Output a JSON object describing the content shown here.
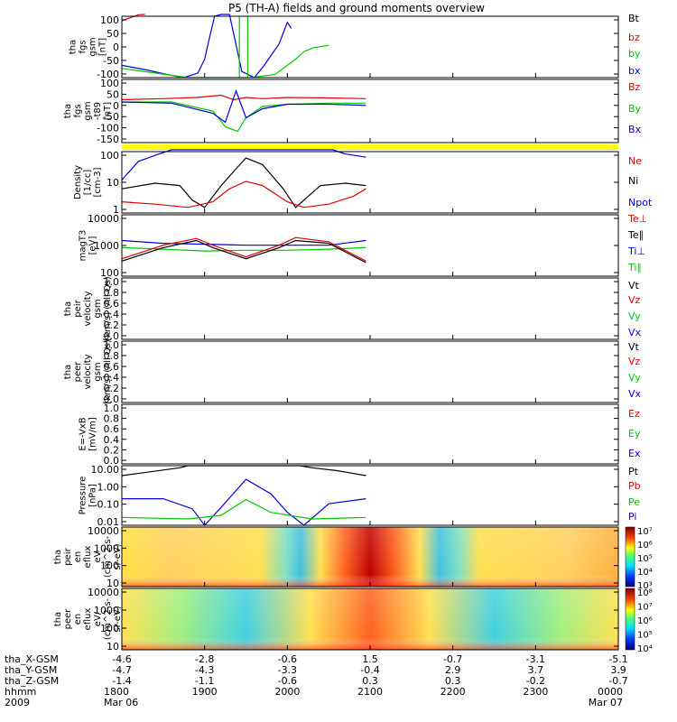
{
  "title": "P5 (TH-A) fields and ground moments overview",
  "colors": {
    "black": "#000000",
    "red": "#e00000",
    "green": "#00c800",
    "blue": "#0000e6",
    "yellow": "#ffff00"
  },
  "chart_data": [
    {
      "type": "line",
      "panel": "fgs",
      "ylabel_lines": [
        "tha",
        "fgs",
        "gsm",
        "[nT]"
      ],
      "ylim": [
        -100,
        100
      ],
      "ytick_labels": [
        "100",
        "50",
        "0",
        "-50",
        "-100"
      ],
      "legend": [
        {
          "label": "Bt",
          "color": "#000000"
        },
        {
          "label": "bz",
          "color": "#e00000"
        },
        {
          "label": "by",
          "color": "#00c800"
        },
        {
          "label": "bx",
          "color": "#0000e6"
        }
      ],
      "series": [
        {
          "name": "bx",
          "color": "#0000e6",
          "x": [
            0,
            0.3,
            0.55,
            0.75,
            0.92,
            1.0,
            1.05,
            1.12,
            1.2,
            1.3,
            1.45,
            1.6,
            1.72,
            1.9,
            2.0,
            2.05
          ],
          "y": [
            -60,
            -75,
            -90,
            -100,
            -85,
            -40,
            20,
            100,
            160,
            120,
            -80,
            -100,
            -60,
            10,
            80,
            60
          ]
        },
        {
          "name": "by",
          "color": "#00c800",
          "x": [
            0,
            0.4,
            0.8,
            1.05,
            1.3,
            1.55,
            1.85,
            2.1,
            2.2,
            2.32,
            2.5
          ],
          "y": [
            -70,
            -85,
            -100,
            -100,
            -100,
            -100,
            -90,
            -40,
            -15,
            -2,
            5
          ]
        },
        {
          "name": "bz",
          "color": "#e00000",
          "x": [
            0,
            0.1,
            0.2,
            0.28
          ],
          "y": [
            85,
            95,
            105,
            115
          ]
        }
      ],
      "clip_vertical_green": [
        [
          1.42,
          1.52
        ]
      ]
    },
    {
      "type": "line",
      "panel": "fgs_dsl",
      "ylabel_lines": [
        "tha",
        "fgs",
        "gsm",
        "-t89",
        "[nT]"
      ],
      "ylim": [
        -170,
        110
      ],
      "ytick_labels": [
        "100",
        "50",
        "0",
        "-50",
        "-100",
        "-150"
      ],
      "legend": [
        {
          "label": "Bz",
          "color": "#e00000"
        },
        {
          "label": "By",
          "color": "#00c800"
        },
        {
          "label": "Bx",
          "color": "#0000e6"
        }
      ],
      "series": [
        {
          "name": "Bz",
          "color": "#e00000",
          "x": [
            0,
            0.5,
            0.9,
            1.2,
            1.35,
            1.5,
            1.7,
            2.0,
            2.5,
            2.95
          ],
          "y": [
            20,
            25,
            30,
            40,
            20,
            30,
            25,
            30,
            28,
            25
          ]
        },
        {
          "name": "By",
          "color": "#00c800",
          "x": [
            0,
            0.6,
            1.1,
            1.25,
            1.4,
            1.5,
            1.7,
            2.0,
            2.5,
            2.95
          ],
          "y": [
            10,
            10,
            -30,
            -100,
            -120,
            -60,
            -10,
            0,
            5,
            5
          ]
        },
        {
          "name": "Bx",
          "color": "#0000e6",
          "x": [
            0,
            0.6,
            1.1,
            1.25,
            1.38,
            1.5,
            1.7,
            2.0,
            2.5,
            2.95
          ],
          "y": [
            10,
            5,
            -40,
            -80,
            60,
            -60,
            -20,
            0,
            0,
            -5
          ]
        }
      ]
    },
    {
      "type": "line",
      "panel": "density",
      "ylabel_lines": [
        "Density",
        "[1/cc]",
        "[cm-3]"
      ],
      "yscale": "log",
      "ylim": [
        0.1,
        200
      ],
      "ytick_labels": [
        "100",
        "10",
        "1"
      ],
      "legend": [
        {
          "label": "Ne",
          "color": "#e00000"
        },
        {
          "label": "Ni",
          "color": "#000000"
        },
        {
          "label": "Npot",
          "color": "#0000e6"
        }
      ],
      "series": [
        {
          "name": "Ni",
          "color": "#000000",
          "x": [
            0,
            0.4,
            0.7,
            0.85,
            1.0,
            1.2,
            1.4,
            1.5,
            1.7,
            1.95,
            2.1,
            2.4,
            2.7,
            2.95
          ],
          "y": [
            2,
            4,
            3,
            0.5,
            0.2,
            3,
            30,
            90,
            40,
            2,
            0.2,
            3,
            4,
            3
          ]
        },
        {
          "name": "Ne",
          "color": "#e00000",
          "x": [
            0,
            0.4,
            0.8,
            1.1,
            1.3,
            1.5,
            1.7,
            2.0,
            2.2,
            2.5,
            2.8,
            2.95
          ],
          "y": [
            0.4,
            0.3,
            0.2,
            0.4,
            2,
            5,
            3,
            0.4,
            0.2,
            0.3,
            0.8,
            2
          ]
        },
        {
          "name": "Npot",
          "color": "#0000e6",
          "x": [
            0,
            0.2,
            0.45,
            0.6,
            2.55,
            2.7,
            2.95
          ],
          "y": [
            6,
            60,
            150,
            250,
            250,
            150,
            100
          ]
        }
      ]
    },
    {
      "type": "line",
      "panel": "temperature",
      "ylabel_lines": [
        "magT3",
        "[eV]"
      ],
      "yscale": "log",
      "ylim": [
        10,
        15000
      ],
      "ytick_labels": [
        "10000",
        "1000",
        "100"
      ],
      "legend": [
        {
          "label": "Te⊥",
          "color": "#e00000"
        },
        {
          "label": "Te∥",
          "color": "#000000"
        },
        {
          "label": "Ti⊥",
          "color": "#0000e6"
        },
        {
          "label": "Ti∥",
          "color": "#00c800"
        }
      ],
      "series": [
        {
          "name": "Ti⊥",
          "color": "#0000e6",
          "x": [
            0,
            0.5,
            1.0,
            1.5,
            2.0,
            2.5,
            2.95
          ],
          "y": [
            700,
            500,
            450,
            400,
            400,
            400,
            700
          ]
        },
        {
          "name": "Ti∥",
          "color": "#00c800",
          "x": [
            0,
            0.5,
            1.0,
            1.5,
            2.0,
            2.5,
            2.95
          ],
          "y": [
            300,
            250,
            200,
            220,
            220,
            250,
            300
          ]
        },
        {
          "name": "Te⊥",
          "color": "#e00000",
          "x": [
            0,
            0.5,
            0.9,
            1.1,
            1.5,
            1.9,
            2.1,
            2.5,
            2.95
          ],
          "y": [
            80,
            400,
            900,
            400,
            100,
            400,
            1000,
            600,
            60
          ]
        },
        {
          "name": "Te∥",
          "color": "#000000",
          "x": [
            0,
            0.5,
            0.9,
            1.1,
            1.5,
            1.9,
            2.1,
            2.5,
            2.95
          ],
          "y": [
            60,
            300,
            700,
            300,
            80,
            300,
            700,
            500,
            50
          ]
        }
      ]
    },
    {
      "type": "line",
      "panel": "peir_velocity",
      "ylabel_lines": [
        "tha",
        "peir",
        "velocity",
        "gsm",
        "[km/s] (All Qs)"
      ],
      "ylim": [
        0,
        1
      ],
      "ytick_labels": [
        "1.0",
        "0.8",
        "0.6",
        "0.4",
        "0.2",
        "0.0"
      ],
      "legend": [
        {
          "label": "Vt",
          "color": "#000000"
        },
        {
          "label": "Vz",
          "color": "#e00000"
        },
        {
          "label": "Vy",
          "color": "#00c800"
        },
        {
          "label": "Vx",
          "color": "#0000e6"
        }
      ],
      "series": []
    },
    {
      "type": "line",
      "panel": "peer_velocity",
      "ylabel_lines": [
        "tha",
        "peer",
        "velocity",
        "gsm",
        "[km/s] (All Qs)"
      ],
      "ylim": [
        0,
        1
      ],
      "ytick_labels": [
        "1.0",
        "0.8",
        "0.6",
        "0.4",
        "0.2",
        "0.0"
      ],
      "legend": [
        {
          "label": "Vt",
          "color": "#000000"
        },
        {
          "label": "Vz",
          "color": "#e00000"
        },
        {
          "label": "Vy",
          "color": "#00c800"
        },
        {
          "label": "Vx",
          "color": "#0000e6"
        }
      ],
      "series": []
    },
    {
      "type": "line",
      "panel": "e_field",
      "ylabel_lines": [
        "E=-VxB",
        "[mV/m]"
      ],
      "ylim": [
        0,
        1
      ],
      "ytick_labels": [
        "1.0",
        "0.8",
        "0.6",
        "0.4",
        "0.2",
        "0.0"
      ],
      "legend": [
        {
          "label": "Ez",
          "color": "#e00000"
        },
        {
          "label": "Ey",
          "color": "#00c800"
        },
        {
          "label": "Ex",
          "color": "#0000e6"
        }
      ],
      "series": []
    },
    {
      "type": "line",
      "panel": "pressure",
      "ylabel_lines": [
        "Pressure",
        "[nPa]"
      ],
      "yscale": "log",
      "ylim": [
        0.005,
        20
      ],
      "ytick_labels": [
        "10.00",
        "1.00",
        "0.10",
        "0.01"
      ],
      "legend": [
        {
          "label": "Pt",
          "color": "#000000"
        },
        {
          "label": "Pb",
          "color": "#e00000"
        },
        {
          "label": "Pe",
          "color": "#00c800"
        },
        {
          "label": "Pi",
          "color": "#0000e6"
        }
      ],
      "series": [
        {
          "name": "Pt",
          "color": "#000000",
          "x": [
            0,
            0.3,
            0.7,
            0.8,
            2.15,
            2.3,
            2.6,
            2.95
          ],
          "y": [
            5,
            8,
            15,
            20,
            20,
            15,
            10,
            5
          ]
        },
        {
          "name": "Pi",
          "color": "#0000e6",
          "x": [
            0,
            0.5,
            0.85,
            1.0,
            1.2,
            1.5,
            1.8,
            2.0,
            2.2,
            2.5,
            2.95
          ],
          "y": [
            0.2,
            0.2,
            0.05,
            0.005,
            0.06,
            3,
            0.4,
            0.03,
            0.005,
            0.1,
            0.2
          ]
        },
        {
          "name": "Pe",
          "color": "#00c800",
          "x": [
            0,
            0.8,
            1.2,
            1.5,
            1.8,
            2.3,
            2.95
          ],
          "y": [
            0.015,
            0.012,
            0.02,
            0.18,
            0.03,
            0.012,
            0.015
          ]
        }
      ]
    },
    {
      "type": "heatmap",
      "panel": "peir_eflux",
      "ylabel_lines": [
        "tha",
        "peir",
        "en",
        "eflux",
        "eV",
        "(cm^2-s-",
        "sr-eV)"
      ],
      "yscale": "log",
      "ylim": [
        8,
        20000
      ],
      "ytick_labels": [
        "10000",
        "1000",
        "100",
        "10"
      ],
      "colorbar_labels": [
        "10⁷",
        "10⁶",
        "10⁵",
        "10⁴",
        "10³"
      ]
    },
    {
      "type": "heatmap",
      "panel": "peer_eflux",
      "ylabel_lines": [
        "tha",
        "peer",
        "en",
        "eflux",
        "eV/",
        "(cm^2-s-",
        "sr-eV)"
      ],
      "yscale": "log",
      "ylim": [
        8,
        20000
      ],
      "ytick_labels": [
        "10000",
        "1000",
        "100",
        "10"
      ],
      "colorbar_labels": [
        "10⁸",
        "10⁷",
        "10⁶",
        "10⁵",
        "10⁴"
      ]
    }
  ],
  "xaxis": {
    "row_labels": [
      "tha_X-GSM",
      "tha_Y-GSM",
      "tha_Z-GSM",
      "hhmm",
      "2009"
    ],
    "columns": [
      {
        "x": -4.6,
        "y": -4.7,
        "z": -1.4,
        "hhmm": "1800",
        "date": "Mar 06"
      },
      {
        "x": -2.8,
        "y": -4.3,
        "z": -1.1,
        "hhmm": "1900",
        "date": ""
      },
      {
        "x": -0.6,
        "y": -3.3,
        "z": -0.6,
        "hhmm": "2000",
        "date": ""
      },
      {
        "x": 1.5,
        "y": -0.4,
        "z": 0.3,
        "hhmm": "2100",
        "date": ""
      },
      {
        "x": -0.7,
        "y": 2.9,
        "z": 0.3,
        "hhmm": "2200",
        "date": ""
      },
      {
        "x": -3.1,
        "y": 3.7,
        "z": -0.2,
        "hhmm": "2300",
        "date": ""
      },
      {
        "x": -5.1,
        "y": 3.9,
        "z": -0.7,
        "hhmm": "0000",
        "date": "Mar 07"
      }
    ],
    "range_hours": [
      18,
      24
    ]
  }
}
